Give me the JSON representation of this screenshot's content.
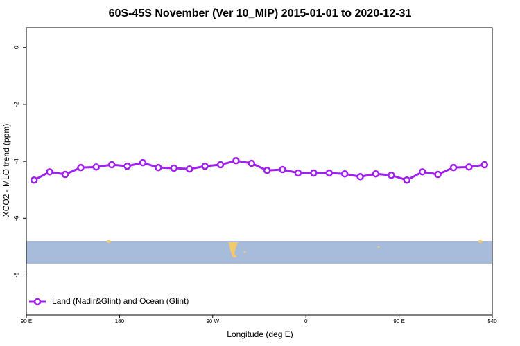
{
  "chart_data": {
    "type": "line",
    "title": "60S-45S November (Ver 10_MIP)   2015-01-01 to 2020-12-31",
    "x_label": "Longitude (deg E)",
    "y_label": "XCO2 - MLO trend (ppm)",
    "x": [
      97.5,
      112.5,
      127.5,
      142.5,
      157.5,
      172.5,
      187.5,
      202.5,
      217.5,
      232.5,
      247.5,
      262.5,
      277.5,
      292.5,
      307.5,
      322.5,
      337.5,
      352.5,
      367.5,
      382.5,
      397.5,
      412.5,
      427.5,
      442.5,
      457.5,
      472.5,
      487.5,
      502.5,
      517.5,
      532.5
    ],
    "series": [
      {
        "name": "Land (Nadir&Glint) and Ocean (Glint)",
        "color": "#a020f0",
        "values": [
          -4.66,
          -4.37,
          -4.46,
          -4.22,
          -4.2,
          -4.12,
          -4.17,
          -4.05,
          -4.22,
          -4.24,
          -4.27,
          -4.17,
          -4.12,
          -3.98,
          -4.07,
          -4.32,
          -4.29,
          -4.41,
          -4.41,
          -4.41,
          -4.44,
          -4.54,
          -4.44,
          -4.49,
          -4.66,
          -4.37,
          -4.46,
          -4.22,
          -4.2,
          -4.12
        ]
      }
    ],
    "xlim": [
      90,
      540
    ],
    "xticks": [
      {
        "value": 90,
        "label": "90 E"
      },
      180,
      {
        "value": 270,
        "label": "90 W"
      },
      {
        "value": 360,
        "label": "0"
      },
      {
        "value": 450,
        "label": "90 E"
      },
      540
    ],
    "ylim": [
      -9.4,
      0.7
    ],
    "yticks": [
      0,
      -2,
      -4,
      -6,
      -8
    ],
    "legend": "bottom-left"
  }
}
